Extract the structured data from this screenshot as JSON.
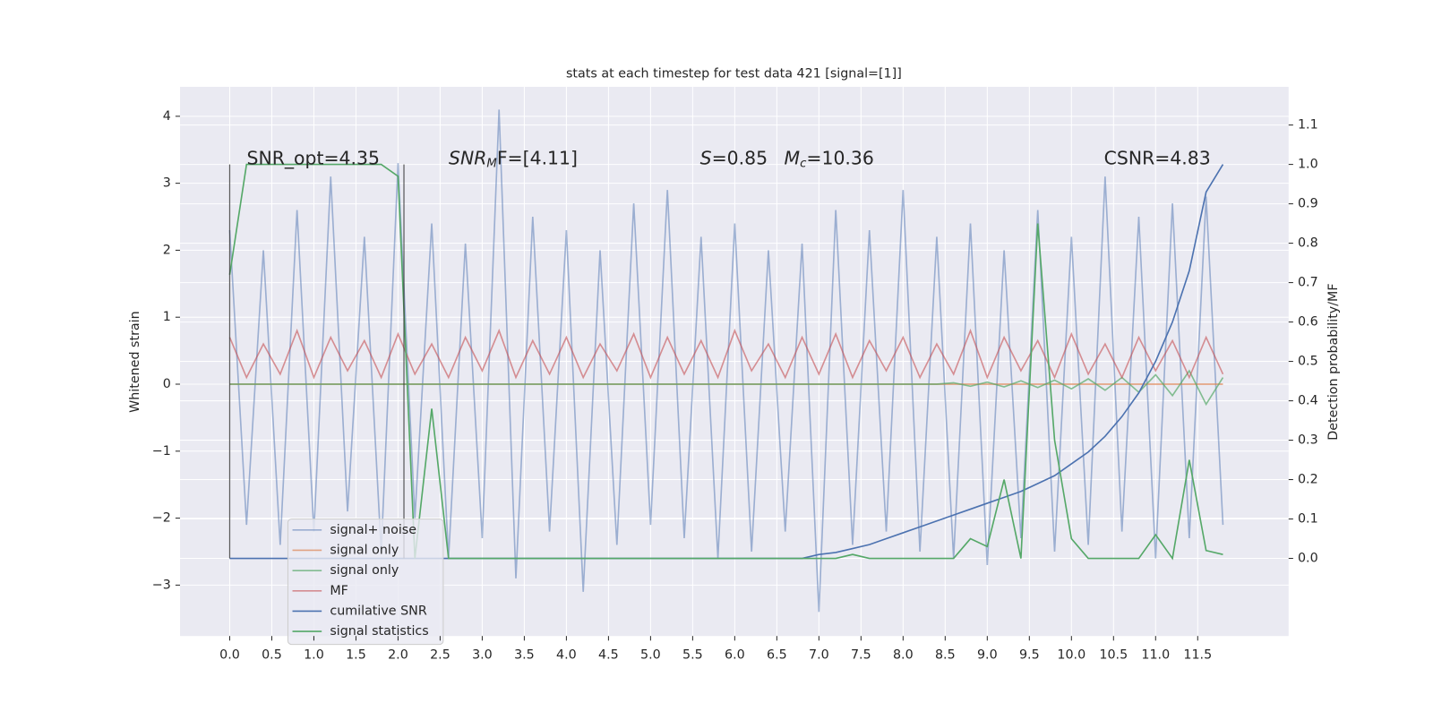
{
  "chart_data": {
    "type": "line",
    "title": "stats at each timestep for test data 421 [signal=[1]]",
    "ylabel": "Whitened strain",
    "y2label": "Detection probability/MF",
    "x": [
      0.0,
      0.2,
      0.4,
      0.6,
      0.8,
      1.0,
      1.2,
      1.4,
      1.6,
      1.8,
      2.0,
      2.2,
      2.4,
      2.6,
      2.8,
      3.0,
      3.2,
      3.4,
      3.6,
      3.8,
      4.0,
      4.2,
      4.4,
      4.6,
      4.8,
      5.0,
      5.2,
      5.4,
      5.6,
      5.8,
      6.0,
      6.2,
      6.4,
      6.6,
      6.8,
      7.0,
      7.2,
      7.4,
      7.6,
      7.8,
      8.0,
      8.2,
      8.4,
      8.6,
      8.8,
      9.0,
      9.2,
      9.4,
      9.6,
      9.8,
      10.0,
      10.2,
      10.4,
      10.6,
      10.8,
      11.0,
      11.2,
      11.4,
      11.6,
      11.8
    ],
    "series": [
      {
        "name": "signal+ noise",
        "color": "#4c72b0",
        "opacity": 0.5,
        "axis": "y",
        "values": [
          2.3,
          -2.1,
          2.0,
          -2.4,
          2.6,
          -2.2,
          3.1,
          -1.9,
          2.2,
          -2.5,
          3.3,
          -2.0,
          2.4,
          -2.6,
          2.1,
          -2.3,
          4.1,
          -2.9,
          2.5,
          -2.2,
          2.3,
          -3.1,
          2.0,
          -2.4,
          2.7,
          -2.1,
          2.9,
          -2.3,
          2.2,
          -2.6,
          2.4,
          -2.5,
          2.0,
          -2.2,
          2.1,
          -3.4,
          2.6,
          -2.4,
          2.3,
          -2.2,
          2.9,
          -2.5,
          2.2,
          -2.6,
          2.4,
          -2.7,
          2.0,
          -2.3,
          2.6,
          -2.5,
          2.2,
          -2.4,
          3.1,
          -2.2,
          2.5,
          -2.6,
          2.7,
          -2.3,
          2.8,
          -2.1
        ]
      },
      {
        "name": "signal only",
        "color": "#dd8452",
        "opacity": 0.7,
        "axis": "y",
        "values": [
          0,
          0,
          0,
          0,
          0,
          0,
          0,
          0,
          0,
          0,
          0,
          0,
          0,
          0,
          0,
          0,
          0,
          0,
          0,
          0,
          0,
          0,
          0,
          0,
          0,
          0,
          0,
          0,
          0,
          0,
          0,
          0,
          0,
          0,
          0,
          0,
          0,
          0,
          0,
          0,
          0,
          0,
          0,
          0,
          0,
          0,
          0,
          0,
          0,
          0,
          0,
          0,
          0,
          0,
          0,
          0,
          0,
          0,
          0,
          0
        ]
      },
      {
        "name": "signal only",
        "color": "#55a868",
        "opacity": 0.7,
        "axis": "y",
        "values": [
          0,
          0,
          0,
          0,
          0,
          0,
          0,
          0,
          0,
          0,
          0,
          0,
          0,
          0,
          0,
          0,
          0,
          0,
          0,
          0,
          0,
          0,
          0,
          0,
          0,
          0,
          0,
          0,
          0,
          0,
          0,
          0,
          0,
          0,
          0,
          0,
          0,
          0,
          0,
          0,
          0,
          0,
          0,
          0.02,
          -0.03,
          0.03,
          -0.04,
          0.05,
          -0.05,
          0.06,
          -0.07,
          0.08,
          -0.09,
          0.1,
          -0.12,
          0.14,
          -0.17,
          0.2,
          -0.3,
          0.1
        ]
      },
      {
        "name": "MF",
        "color": "#c44e52",
        "opacity": 0.6,
        "axis": "y",
        "values": [
          0.7,
          0.1,
          0.6,
          0.15,
          0.8,
          0.1,
          0.7,
          0.2,
          0.65,
          0.1,
          0.75,
          0.15,
          0.6,
          0.1,
          0.7,
          0.2,
          0.8,
          0.1,
          0.65,
          0.15,
          0.7,
          0.1,
          0.6,
          0.2,
          0.75,
          0.1,
          0.7,
          0.15,
          0.65,
          0.1,
          0.8,
          0.2,
          0.6,
          0.1,
          0.7,
          0.15,
          0.75,
          0.1,
          0.65,
          0.2,
          0.7,
          0.1,
          0.6,
          0.15,
          0.8,
          0.1,
          0.7,
          0.2,
          0.65,
          0.1,
          0.75,
          0.15,
          0.6,
          0.1,
          0.7,
          0.2,
          0.65,
          0.1,
          0.7,
          0.15
        ]
      },
      {
        "name": "cumilative SNR",
        "color": "#4c72b0",
        "opacity": 1,
        "axis": "y2",
        "values": [
          0,
          0,
          0,
          0,
          0,
          0,
          0,
          0,
          0,
          0,
          0,
          0,
          0,
          0,
          0,
          0,
          0,
          0,
          0,
          0,
          0,
          0,
          0,
          0,
          0,
          0,
          0,
          0,
          0,
          0,
          0,
          0,
          0,
          0,
          0,
          0.01,
          0.015,
          0.025,
          0.035,
          0.05,
          0.065,
          0.08,
          0.095,
          0.11,
          0.125,
          0.14,
          0.155,
          0.17,
          0.19,
          0.21,
          0.24,
          0.27,
          0.31,
          0.36,
          0.42,
          0.5,
          0.6,
          0.73,
          0.93,
          1.0
        ]
      },
      {
        "name": "signal statistics",
        "color": "#55a868",
        "opacity": 1,
        "axis": "y2",
        "values": [
          0.72,
          1,
          1,
          1,
          1,
          1,
          1,
          1,
          1,
          1,
          0.97,
          0,
          0.38,
          0,
          0,
          0,
          0,
          0,
          0,
          0,
          0,
          0,
          0,
          0,
          0,
          0,
          0,
          0,
          0,
          0,
          0,
          0,
          0,
          0,
          0,
          0,
          0,
          0.01,
          0,
          0,
          0,
          0,
          0,
          0,
          0.05,
          0.03,
          0.2,
          0,
          0.85,
          0.3,
          0.05,
          0,
          0,
          0,
          0,
          0.06,
          0,
          0.25,
          0.02,
          0.01
        ]
      }
    ],
    "vlines": {
      "x": [
        0,
        2.07
      ],
      "y2": [
        0,
        1
      ]
    },
    "annotations": {
      "snr_opt": "SNR_opt=4.35",
      "snr_mf": {
        "base": "SNR",
        "sub": "M",
        "rest": "F=[4.11]"
      },
      "s": {
        "base": "S",
        "rest": "=0.85"
      },
      "mc": {
        "base": "M",
        "sub": "c",
        "rest": "=10.36"
      },
      "csnr": "CSNR=4.83"
    },
    "xlim": [
      -0.59,
      12.58
    ],
    "ylim": [
      -3.76,
      4.44
    ],
    "y2lim": [
      -0.197,
      1.197
    ],
    "xticks": [
      {
        "value": 0,
        "label": "0.0"
      },
      0.5,
      {
        "value": 1,
        "label": "1.0"
      },
      1.5,
      {
        "value": 2,
        "label": "2.0"
      },
      2.5,
      {
        "value": 3,
        "label": "3.0"
      },
      3.5,
      {
        "value": 4,
        "label": "4.0"
      },
      4.5,
      {
        "value": 5,
        "label": "5.0"
      },
      5.5,
      {
        "value": 6,
        "label": "6.0"
      },
      6.5,
      {
        "value": 7,
        "label": "7.0"
      },
      7.5,
      {
        "value": 8,
        "label": "8.0"
      },
      8.5,
      {
        "value": 9,
        "label": "9.0"
      },
      9.5,
      {
        "value": 10,
        "label": "10.0"
      },
      10.5,
      {
        "value": 11,
        "label": "11.0"
      },
      11.5
    ],
    "yticks": [
      {
        "value": -3,
        "label": "−3"
      },
      {
        "value": -2,
        "label": "−2"
      },
      {
        "value": -1,
        "label": "−1"
      },
      0,
      1,
      2,
      3,
      4
    ],
    "y2ticks": [
      {
        "value": 0,
        "label": "0.0"
      },
      0.1,
      0.2,
      0.3,
      0.4,
      0.5,
      0.6,
      0.7,
      0.8,
      0.9,
      {
        "value": 1,
        "label": "1.0"
      },
      1.1
    ],
    "grid": true,
    "legend": "lower left"
  }
}
